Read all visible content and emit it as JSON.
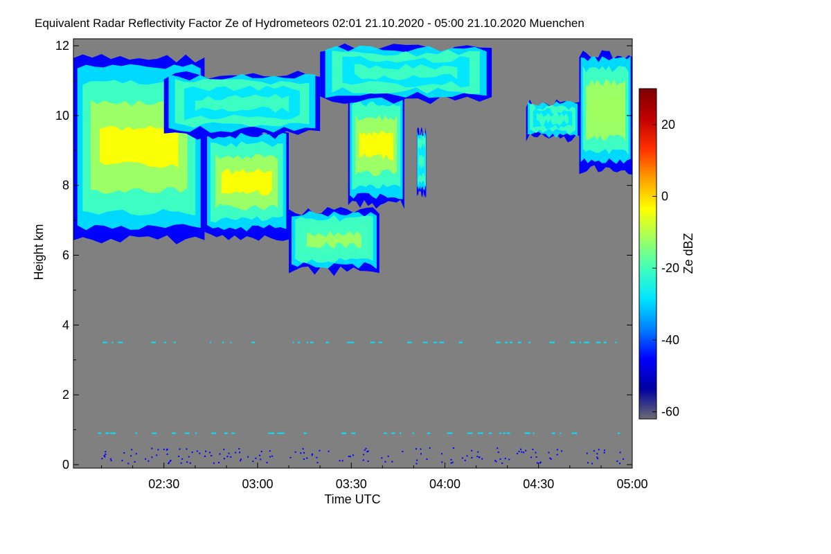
{
  "chart_data": {
    "type": "heatmap",
    "title": "Equivalent Radar Reflectivity Factor Ze of Hydrometeors   02:01 21.10.2020 - 05:00 21.10.2020 Muenchen",
    "xlabel": "Time UTC",
    "ylabel": "Height km",
    "colorbar_label": "Ze dBZ",
    "x_range_minutes": [
      121,
      300
    ],
    "y_range_km": [
      -0.1,
      12.2
    ],
    "x_ticks": [
      {
        "minute": 150,
        "label": "02:30"
      },
      {
        "minute": 180,
        "label": "03:00"
      },
      {
        "minute": 210,
        "label": "03:30"
      },
      {
        "minute": 240,
        "label": "04:00"
      },
      {
        "minute": 270,
        "label": "04:30"
      },
      {
        "minute": 300,
        "label": "05:00"
      }
    ],
    "y_ticks": [
      {
        "value": 0,
        "label": "0"
      },
      {
        "value": 2,
        "label": "2"
      },
      {
        "value": 4,
        "label": "4"
      },
      {
        "value": 6,
        "label": "6"
      },
      {
        "value": 8,
        "label": "8"
      },
      {
        "value": 10,
        "label": "10"
      },
      {
        "value": 12,
        "label": "12"
      }
    ],
    "colorbar_range": [
      -62,
      30
    ],
    "colorbar_ticks": [
      {
        "value": 20,
        "label": "20"
      },
      {
        "value": 0,
        "label": "0"
      },
      {
        "value": -20,
        "label": "-20"
      },
      {
        "value": -40,
        "label": "-40"
      },
      {
        "value": -60,
        "label": "-60"
      }
    ],
    "background_color": "#808080",
    "colormap": [
      "#6b6b73",
      "#0000a0",
      "#0000ff",
      "#0080ff",
      "#00e5ff",
      "#40ffbf",
      "#a0ff60",
      "#ffff00",
      "#ffa000",
      "#ff3000",
      "#c00000",
      "#800000"
    ],
    "echo_regions": [
      {
        "name": "cloud-west",
        "t0": 121,
        "t1": 163,
        "hbase": 6.5,
        "htop": 11.7,
        "ze": -12
      },
      {
        "name": "cloud-fallstreak",
        "t0": 163,
        "t1": 190,
        "hbase": 6.6,
        "htop": 9.6,
        "ze": -9
      },
      {
        "name": "cloud-layer-upper",
        "t0": 150,
        "t1": 200,
        "hbase": 9.5,
        "htop": 11.2,
        "ze": -25
      },
      {
        "name": "cloud-tail",
        "t0": 190,
        "t1": 219,
        "hbase": 5.6,
        "htop": 7.3,
        "ze": -22
      },
      {
        "name": "cloud-cell",
        "t0": 209,
        "t1": 227,
        "hbase": 7.5,
        "htop": 10.8,
        "ze": -13
      },
      {
        "name": "cloud-top-strip",
        "t0": 200,
        "t1": 255,
        "hbase": 10.5,
        "htop": 12.0,
        "ze": -28
      },
      {
        "name": "cloud-small",
        "t0": 231,
        "t1": 234,
        "hbase": 7.8,
        "htop": 9.6,
        "ze": -26
      },
      {
        "name": "cloud-east",
        "t0": 283,
        "t1": 300,
        "hbase": 8.5,
        "htop": 11.8,
        "ze": -15
      },
      {
        "name": "cloud-east-tail",
        "t0": 266,
        "t1": 283,
        "hbase": 9.4,
        "htop": 10.4,
        "ze": -28
      }
    ],
    "clutter_rows_km": [
      3.5,
      0.9
    ]
  }
}
